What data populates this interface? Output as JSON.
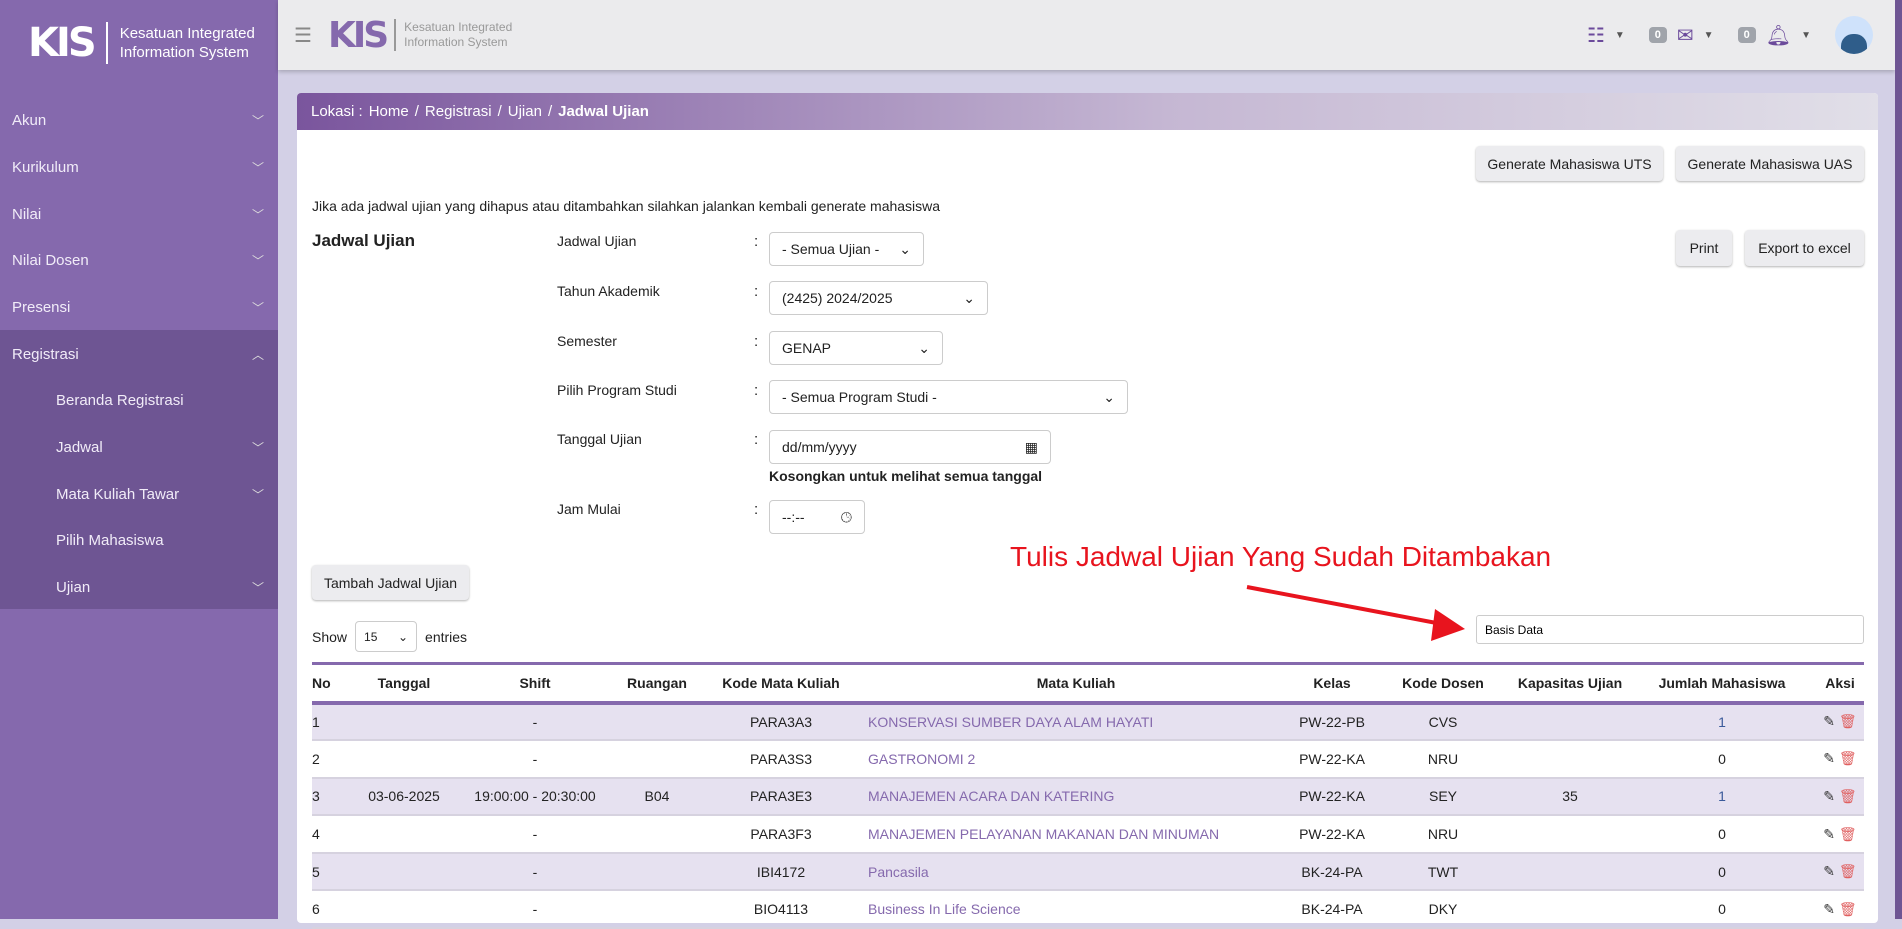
{
  "brand": {
    "logo": "KIS",
    "line1": "Kesatuan Integrated",
    "line2": "Information System"
  },
  "sidebar": {
    "items": [
      {
        "label": "Akun"
      },
      {
        "label": "Kurikulum"
      },
      {
        "label": "Nilai"
      },
      {
        "label": "Nilai Dosen"
      },
      {
        "label": "Presensi"
      },
      {
        "label": "Registrasi"
      },
      {
        "label": "Beranda Registrasi"
      },
      {
        "label": "Jadwal"
      },
      {
        "label": "Mata Kuliah Tawar"
      },
      {
        "label": "Pilih Mahasiswa"
      },
      {
        "label": "Ujian"
      }
    ]
  },
  "topbar": {
    "messages_count": "0",
    "notifications_count": "0"
  },
  "breadcrumb": {
    "prefix": "Lokasi :",
    "items": [
      "Home",
      "Registrasi",
      "Ujian"
    ],
    "current": "Jadwal Ujian",
    "sep": "/"
  },
  "actions": {
    "generate_uts": "Generate Mahasiswa UTS",
    "generate_uas": "Generate Mahasiswa UAS",
    "print": "Print",
    "export": "Export to excel",
    "tambah": "Tambah Jadwal Ujian"
  },
  "notice": "Jika ada jadwal ujian yang dihapus atau ditambahkan silahkan jalankan kembali generate mahasiswa",
  "form": {
    "title": "Jadwal Ujian",
    "colon": ":",
    "jadwal_label": "Jadwal Ujian",
    "jadwal_value": "- Semua Ujian -",
    "tahun_label": "Tahun Akademik",
    "tahun_value": "(2425) 2024/2025",
    "semester_label": "Semester",
    "semester_value": "GENAP",
    "prodi_label": "Pilih Program Studi",
    "prodi_value": "- Semua Program Studi -",
    "tanggal_label": "Tanggal Ujian",
    "tanggal_placeholder": "dd/mm/yyyy",
    "tanggal_hint": "Kosongkan untuk melihat semua tanggal",
    "jam_label": "Jam Mulai",
    "jam_placeholder": "--:--"
  },
  "annotation": {
    "text": "Tulis Jadwal Ujian Yang Sudah Ditambakan",
    "color": "#e8141e"
  },
  "table_controls": {
    "show": "Show",
    "entries_value": "15",
    "entries": "entries",
    "search_value": "Basis Data"
  },
  "table": {
    "headers": [
      "No",
      "Tanggal",
      "Shift",
      "Ruangan",
      "Kode Mata Kuliah",
      "Mata Kuliah",
      "Kelas",
      "Kode Dosen",
      "Kapasitas Ujian",
      "Jumlah Mahasiswa",
      "Aksi"
    ],
    "rows": [
      [
        "1",
        "",
        "-",
        "",
        "PARA3A3",
        "KONSERVASI SUMBER DAYA ALAM HAYATI",
        "PW-22-PB",
        "CVS",
        "",
        "1"
      ],
      [
        "2",
        "",
        "-",
        "",
        "PARA3S3",
        "GASTRONOMI 2",
        "PW-22-KA",
        "NRU",
        "",
        "0"
      ],
      [
        "3",
        "03-06-2025",
        "19:00:00 - 20:30:00",
        "B04",
        "PARA3E3",
        "MANAJEMEN ACARA DAN KATERING",
        "PW-22-KA",
        "SEY",
        "35",
        "1"
      ],
      [
        "4",
        "",
        "-",
        "",
        "PARA3F3",
        "MANAJEMEN PELAYANAN MAKANAN DAN MINUMAN",
        "PW-22-KA",
        "NRU",
        "",
        "0"
      ],
      [
        "5",
        "",
        "-",
        "",
        "IBI4172",
        "Pancasila",
        "BK-24-PA",
        "TWT",
        "",
        "0"
      ],
      [
        "6",
        "",
        "-",
        "",
        "BIO4113",
        "Business In Life Science",
        "BK-24-PA",
        "DKY",
        "",
        "0"
      ]
    ]
  }
}
